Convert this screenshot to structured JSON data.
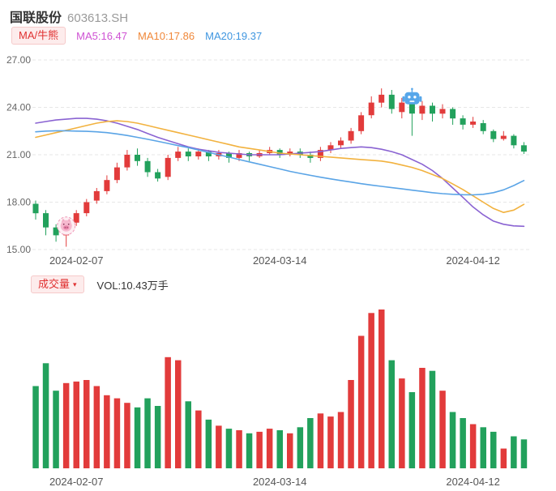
{
  "header": {
    "stock_name": "国联股份",
    "stock_code": "603613.SH"
  },
  "main_legend": {
    "selector_label": "MA/牛熊"
  },
  "volume_header": {
    "selector_label": "成交量",
    "caret": "▾",
    "vol_label": "VOL:10.43万手"
  },
  "colors": {
    "up": "#e23b3b",
    "down": "#22a15c",
    "grid": "#e7e7e7",
    "axis_text": "#666666",
    "x_label_text": "#555555",
    "pill_bg": "#fdecec",
    "pill_text": "#e03131"
  },
  "chart_data": {
    "type": "candlestick+volume",
    "title": "国联股份 603613.SH",
    "ylim": [
      15,
      27
    ],
    "grid": "horizontal-dashed",
    "y_ticks": [
      {
        "label": "27.00",
        "value": 27
      },
      {
        "label": "24.00",
        "value": 24
      },
      {
        "label": "21.00",
        "value": 21
      },
      {
        "label": "18.00",
        "value": 18
      },
      {
        "label": "15.00",
        "value": 15
      }
    ],
    "x_axis_labels": [
      {
        "label": "2024-02-07",
        "index": 4
      },
      {
        "label": "2024-03-14",
        "index": 24
      },
      {
        "label": "2024-04-12",
        "index": 43
      }
    ],
    "volume_max": 10.43,
    "volume_unit": "万手",
    "candles": [
      {
        "d": "2024-02-01",
        "o": 17.9,
        "h": 18.1,
        "l": 16.9,
        "c": 17.3,
        "v": 5.4
      },
      {
        "d": "2024-02-02",
        "o": 17.3,
        "h": 17.5,
        "l": 15.9,
        "c": 16.4,
        "v": 6.9
      },
      {
        "d": "2024-02-05",
        "o": 16.4,
        "h": 16.6,
        "l": 15.5,
        "c": 15.9,
        "v": 5.1
      },
      {
        "d": "2024-02-06",
        "o": 15.9,
        "h": 16.9,
        "l": 15.18,
        "c": 16.7,
        "v": 5.6
      },
      {
        "d": "2024-02-07",
        "o": 16.7,
        "h": 17.5,
        "l": 16.5,
        "c": 17.3,
        "v": 5.7
      },
      {
        "d": "2024-02-08",
        "o": 17.3,
        "h": 18.2,
        "l": 17.1,
        "c": 18.0,
        "v": 5.8
      },
      {
        "d": "2024-02-19",
        "o": 18.1,
        "h": 18.9,
        "l": 17.9,
        "c": 18.7,
        "v": 5.4
      },
      {
        "d": "2024-02-20",
        "o": 18.7,
        "h": 19.7,
        "l": 18.5,
        "c": 19.4,
        "v": 4.8
      },
      {
        "d": "2024-02-21",
        "o": 19.4,
        "h": 20.5,
        "l": 19.2,
        "c": 20.2,
        "v": 4.6
      },
      {
        "d": "2024-02-22",
        "o": 20.2,
        "h": 21.3,
        "l": 20.0,
        "c": 21.0,
        "v": 4.3
      },
      {
        "d": "2024-02-23",
        "o": 21.0,
        "h": 21.4,
        "l": 20.3,
        "c": 20.6,
        "v": 4.0
      },
      {
        "d": "2024-02-26",
        "o": 20.6,
        "h": 20.8,
        "l": 19.6,
        "c": 19.9,
        "v": 4.6
      },
      {
        "d": "2024-02-27",
        "o": 19.9,
        "h": 20.1,
        "l": 19.3,
        "c": 19.5,
        "v": 4.1
      },
      {
        "d": "2024-02-28",
        "o": 19.6,
        "h": 21.0,
        "l": 19.4,
        "c": 20.8,
        "v": 7.3
      },
      {
        "d": "2024-02-29",
        "o": 20.8,
        "h": 21.5,
        "l": 20.6,
        "c": 21.2,
        "v": 7.1
      },
      {
        "d": "2024-03-01",
        "o": 21.2,
        "h": 21.4,
        "l": 20.6,
        "c": 20.9,
        "v": 4.4
      },
      {
        "d": "2024-03-04",
        "o": 20.9,
        "h": 21.4,
        "l": 20.7,
        "c": 21.2,
        "v": 3.8
      },
      {
        "d": "2024-03-05",
        "o": 21.2,
        "h": 21.3,
        "l": 20.6,
        "c": 20.9,
        "v": 3.2
      },
      {
        "d": "2024-03-06",
        "o": 20.9,
        "h": 21.3,
        "l": 20.7,
        "c": 21.1,
        "v": 2.8
      },
      {
        "d": "2024-03-07",
        "o": 21.1,
        "h": 21.2,
        "l": 20.5,
        "c": 20.8,
        "v": 2.6
      },
      {
        "d": "2024-03-08",
        "o": 20.8,
        "h": 21.3,
        "l": 20.6,
        "c": 21.1,
        "v": 2.5
      },
      {
        "d": "2024-03-11",
        "o": 21.1,
        "h": 21.2,
        "l": 20.6,
        "c": 20.9,
        "v": 2.3
      },
      {
        "d": "2024-03-12",
        "o": 20.9,
        "h": 21.3,
        "l": 20.8,
        "c": 21.1,
        "v": 2.4
      },
      {
        "d": "2024-03-13",
        "o": 21.1,
        "h": 21.5,
        "l": 21.0,
        "c": 21.3,
        "v": 2.6
      },
      {
        "d": "2024-03-14",
        "o": 21.3,
        "h": 21.4,
        "l": 20.8,
        "c": 21.0,
        "v": 2.5
      },
      {
        "d": "2024-03-15",
        "o": 21.0,
        "h": 21.4,
        "l": 20.9,
        "c": 21.2,
        "v": 2.3
      },
      {
        "d": "2024-03-18",
        "o": 21.2,
        "h": 21.4,
        "l": 20.8,
        "c": 21.0,
        "v": 2.7
      },
      {
        "d": "2024-03-19",
        "o": 21.0,
        "h": 21.2,
        "l": 20.5,
        "c": 20.8,
        "v": 3.3
      },
      {
        "d": "2024-03-20",
        "o": 20.8,
        "h": 21.5,
        "l": 20.6,
        "c": 21.3,
        "v": 3.6
      },
      {
        "d": "2024-03-21",
        "o": 21.3,
        "h": 21.8,
        "l": 21.1,
        "c": 21.6,
        "v": 3.4
      },
      {
        "d": "2024-03-22",
        "o": 21.6,
        "h": 22.1,
        "l": 21.4,
        "c": 21.9,
        "v": 3.7
      },
      {
        "d": "2024-03-25",
        "o": 21.9,
        "h": 22.7,
        "l": 21.7,
        "c": 22.5,
        "v": 5.8
      },
      {
        "d": "2024-03-26",
        "o": 22.5,
        "h": 23.7,
        "l": 22.3,
        "c": 23.5,
        "v": 8.7
      },
      {
        "d": "2024-03-27",
        "o": 23.5,
        "h": 24.7,
        "l": 23.3,
        "c": 24.3,
        "v": 10.2
      },
      {
        "d": "2024-03-28",
        "o": 24.3,
        "h": 25.2,
        "l": 24.0,
        "c": 24.8,
        "v": 10.43
      },
      {
        "d": "2024-03-29",
        "o": 24.8,
        "h": 25.1,
        "l": 23.6,
        "c": 23.9,
        "v": 7.1
      },
      {
        "d": "2024-04-01",
        "o": 23.7,
        "h": 24.6,
        "l": 23.3,
        "c": 24.3,
        "v": 5.9
      },
      {
        "d": "2024-04-02",
        "o": 24.3,
        "h": 24.5,
        "l": 22.2,
        "c": 23.6,
        "v": 5.0
      },
      {
        "d": "2024-04-03",
        "o": 23.6,
        "h": 24.4,
        "l": 23.2,
        "c": 24.1,
        "v": 6.6
      },
      {
        "d": "2024-04-08",
        "o": 24.1,
        "h": 24.3,
        "l": 23.1,
        "c": 23.6,
        "v": 6.4
      },
      {
        "d": "2024-04-09",
        "o": 23.6,
        "h": 24.2,
        "l": 23.3,
        "c": 23.9,
        "v": 5.1
      },
      {
        "d": "2024-04-10",
        "o": 23.9,
        "h": 24.0,
        "l": 22.9,
        "c": 23.3,
        "v": 3.7
      },
      {
        "d": "2024-04-11",
        "o": 23.3,
        "h": 23.5,
        "l": 22.6,
        "c": 22.9,
        "v": 3.3
      },
      {
        "d": "2024-04-12",
        "o": 22.9,
        "h": 23.4,
        "l": 22.7,
        "c": 23.1,
        "v": 2.9
      },
      {
        "d": "2024-04-15",
        "o": 23.0,
        "h": 23.2,
        "l": 22.3,
        "c": 22.5,
        "v": 2.7
      },
      {
        "d": "2024-04-16",
        "o": 22.5,
        "h": 22.6,
        "l": 21.8,
        "c": 22.0,
        "v": 2.4
      },
      {
        "d": "2024-04-17",
        "o": 22.0,
        "h": 22.5,
        "l": 21.9,
        "c": 22.2,
        "v": 1.3
      },
      {
        "d": "2024-04-18",
        "o": 22.2,
        "h": 22.3,
        "l": 21.4,
        "c": 21.6,
        "v": 2.1
      },
      {
        "d": "2024-04-19",
        "o": 21.6,
        "h": 21.8,
        "l": 21.05,
        "c": 21.2,
        "v": 1.9
      }
    ],
    "ma_series": [
      {
        "name": "MA5",
        "legend_label": "MA5:16.47",
        "legend_color": "#cf52d3",
        "line_color": "#8a63d2",
        "values": [
          23.0,
          23.1,
          23.2,
          23.25,
          23.3,
          23.3,
          23.25,
          23.15,
          23.0,
          22.8,
          22.6,
          22.35,
          22.1,
          21.9,
          21.7,
          21.5,
          21.35,
          21.25,
          21.15,
          21.1,
          21.05,
          21.0,
          21.0,
          21.0,
          21.0,
          21.05,
          21.1,
          21.15,
          21.2,
          21.3,
          21.4,
          21.45,
          21.5,
          21.45,
          21.35,
          21.2,
          21.0,
          20.7,
          20.4,
          20.0,
          19.5,
          18.9,
          18.3,
          17.7,
          17.2,
          16.8,
          16.6,
          16.5,
          16.47
        ]
      },
      {
        "name": "MA10",
        "legend_label": "MA10:17.86",
        "legend_color": "#f0883a",
        "line_color": "#f2b23f",
        "values": [
          22.1,
          22.25,
          22.4,
          22.55,
          22.7,
          22.85,
          23.0,
          23.1,
          23.15,
          23.1,
          23.0,
          22.85,
          22.7,
          22.55,
          22.4,
          22.25,
          22.1,
          21.95,
          21.8,
          21.65,
          21.5,
          21.4,
          21.3,
          21.2,
          21.1,
          21.05,
          21.0,
          20.95,
          20.9,
          20.85,
          20.8,
          20.75,
          20.7,
          20.65,
          20.6,
          20.5,
          20.35,
          20.2,
          20.0,
          19.75,
          19.5,
          19.15,
          18.8,
          18.4,
          18.0,
          17.6,
          17.35,
          17.5,
          17.86
        ]
      },
      {
        "name": "MA20",
        "legend_label": "MA20:19.37",
        "legend_color": "#3f96e0",
        "line_color": "#5aa4e6",
        "values": [
          22.45,
          22.5,
          22.52,
          22.52,
          22.5,
          22.48,
          22.45,
          22.4,
          22.32,
          22.22,
          22.1,
          21.98,
          21.85,
          21.72,
          21.58,
          21.45,
          21.3,
          21.15,
          21.0,
          20.85,
          20.7,
          20.55,
          20.4,
          20.25,
          20.1,
          19.95,
          19.82,
          19.7,
          19.58,
          19.47,
          19.37,
          19.27,
          19.17,
          19.08,
          19.0,
          18.92,
          18.84,
          18.76,
          18.68,
          18.6,
          18.54,
          18.5,
          18.47,
          18.46,
          18.5,
          18.6,
          18.78,
          19.05,
          19.37
        ]
      }
    ],
    "markers": [
      {
        "name": "pig-marker",
        "index": 3,
        "price": 16.5
      },
      {
        "name": "robot-marker",
        "index": 37,
        "price": 24.55
      }
    ]
  }
}
